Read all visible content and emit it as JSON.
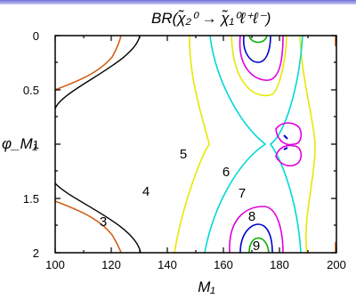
{
  "header": {
    "accent_color": "#6f6fd8"
  },
  "chart_data": {
    "type": "contour",
    "title": "BR(χ̃₂⁰ → χ̃₁⁰ℓ⁺ℓ⁻)",
    "xlabel": "M₁",
    "ylabel": "φ_M₁",
    "xlim": [
      100,
      200
    ],
    "ylim": [
      0,
      2
    ],
    "y_inverted": true,
    "x_ticks": [
      "100",
      "120",
      "140",
      "160",
      "180",
      "200"
    ],
    "y_ticks": [
      "0",
      "0.5",
      "1",
      "1.5",
      "2"
    ],
    "grid": false,
    "contour_labels": [
      {
        "text": "3",
        "x": 116,
        "y": 1.72,
        "color": "#d2601a"
      },
      {
        "text": "4",
        "x": 128,
        "y": 1.44,
        "color": "#000000"
      },
      {
        "text": "5",
        "x": 148,
        "y": 1.08,
        "color": "#e8e800"
      },
      {
        "text": "6",
        "x": 161,
        "y": 1.27,
        "color": "#00d8d8"
      },
      {
        "text": "7",
        "x": 165,
        "y": 1.5,
        "color": "#e000e0"
      },
      {
        "text": "8",
        "x": 168,
        "y": 1.78,
        "color": "#0000cc"
      },
      {
        "text": "9",
        "x": 168,
        "y": 1.97,
        "color": "#00b000"
      }
    ]
  }
}
